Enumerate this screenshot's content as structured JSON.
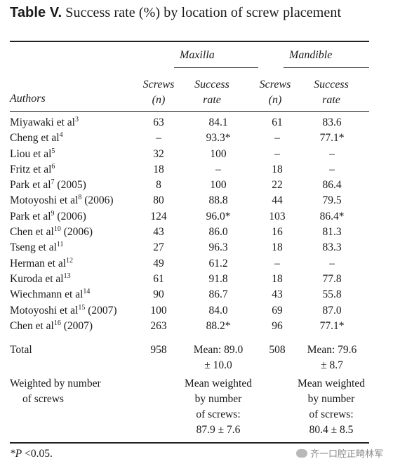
{
  "title": {
    "label": "Table V.",
    "text": "Success rate (%) by location of screw placement"
  },
  "groups": {
    "maxilla": "Maxilla",
    "mandible": "Mandible"
  },
  "columns": {
    "authors": "Authors",
    "screws_line1": "Screws",
    "screws_line2": "(n)",
    "success_line1": "Success",
    "success_line2": "rate"
  },
  "rows": [
    {
      "author": "Miyawaki et al",
      "ref": "3",
      "year": "",
      "max_n": "63",
      "max_rate": "84.1",
      "man_n": "61",
      "man_rate": "83.6"
    },
    {
      "author": "Cheng et al",
      "ref": "4",
      "year": "",
      "max_n": "–",
      "max_rate": "93.3*",
      "man_n": "–",
      "man_rate": "77.1*"
    },
    {
      "author": "Liou et al",
      "ref": "5",
      "year": "",
      "max_n": "32",
      "max_rate": "100",
      "man_n": "–",
      "man_rate": "–"
    },
    {
      "author": "Fritz et al",
      "ref": "6",
      "year": "",
      "max_n": "18",
      "max_rate": "–",
      "man_n": "18",
      "man_rate": "–"
    },
    {
      "author": "Park et al",
      "ref": "7",
      "year": "(2005)",
      "max_n": "8",
      "max_rate": "100",
      "man_n": "22",
      "man_rate": "86.4"
    },
    {
      "author": "Motoyoshi et al",
      "ref": "8",
      "year": "(2006)",
      "max_n": "80",
      "max_rate": "88.8",
      "man_n": "44",
      "man_rate": "79.5"
    },
    {
      "author": "Park et al",
      "ref": "9",
      "year": "(2006)",
      "max_n": "124",
      "max_rate": "96.0*",
      "man_n": "103",
      "man_rate": "86.4*"
    },
    {
      "author": "Chen et al",
      "ref": "10",
      "year": "(2006)",
      "max_n": "43",
      "max_rate": "86.0",
      "man_n": "16",
      "man_rate": "81.3"
    },
    {
      "author": "Tseng et al",
      "ref": "11",
      "year": "",
      "max_n": "27",
      "max_rate": "96.3",
      "man_n": "18",
      "man_rate": "83.3"
    },
    {
      "author": "Herman et al",
      "ref": "12",
      "year": "",
      "max_n": "49",
      "max_rate": "61.2",
      "man_n": "–",
      "man_rate": "–"
    },
    {
      "author": "Kuroda et al",
      "ref": "13",
      "year": "",
      "max_n": "61",
      "max_rate": "91.8",
      "man_n": "18",
      "man_rate": "77.8"
    },
    {
      "author": "Wiechmann et al",
      "ref": "14",
      "year": "",
      "max_n": "90",
      "max_rate": "86.7",
      "man_n": "43",
      "man_rate": "55.8"
    },
    {
      "author": "Motoyoshi et al",
      "ref": "15",
      "year": "(2007)",
      "max_n": "100",
      "max_rate": "84.0",
      "man_n": "69",
      "man_rate": "87.0"
    },
    {
      "author": "Chen et al",
      "ref": "16",
      "year": "(2007)",
      "max_n": "263",
      "max_rate": "88.2*",
      "man_n": "96",
      "man_rate": "77.1*"
    }
  ],
  "total": {
    "label": "Total",
    "max_n": "958",
    "max_mean_line1": "Mean: 89.0",
    "max_mean_line2": "± 10.0",
    "man_n": "508",
    "man_mean_line1": "Mean: 79.6",
    "man_mean_line2": "± 8.7"
  },
  "weighted": {
    "label_line1": "Weighted by number",
    "label_line2": "of screws",
    "max_lines": [
      "Mean weighted",
      "by number",
      "of screws:",
      "87.9 ± 7.6"
    ],
    "man_lines": [
      "Mean weighted",
      "by number",
      "of screws:",
      "80.4 ± 8.5"
    ]
  },
  "footnote": {
    "symbol": "*P",
    "text": " <0.05."
  },
  "watermark": {
    "text": "齐一口腔正畸林军",
    "icon": "wechat-icon"
  }
}
